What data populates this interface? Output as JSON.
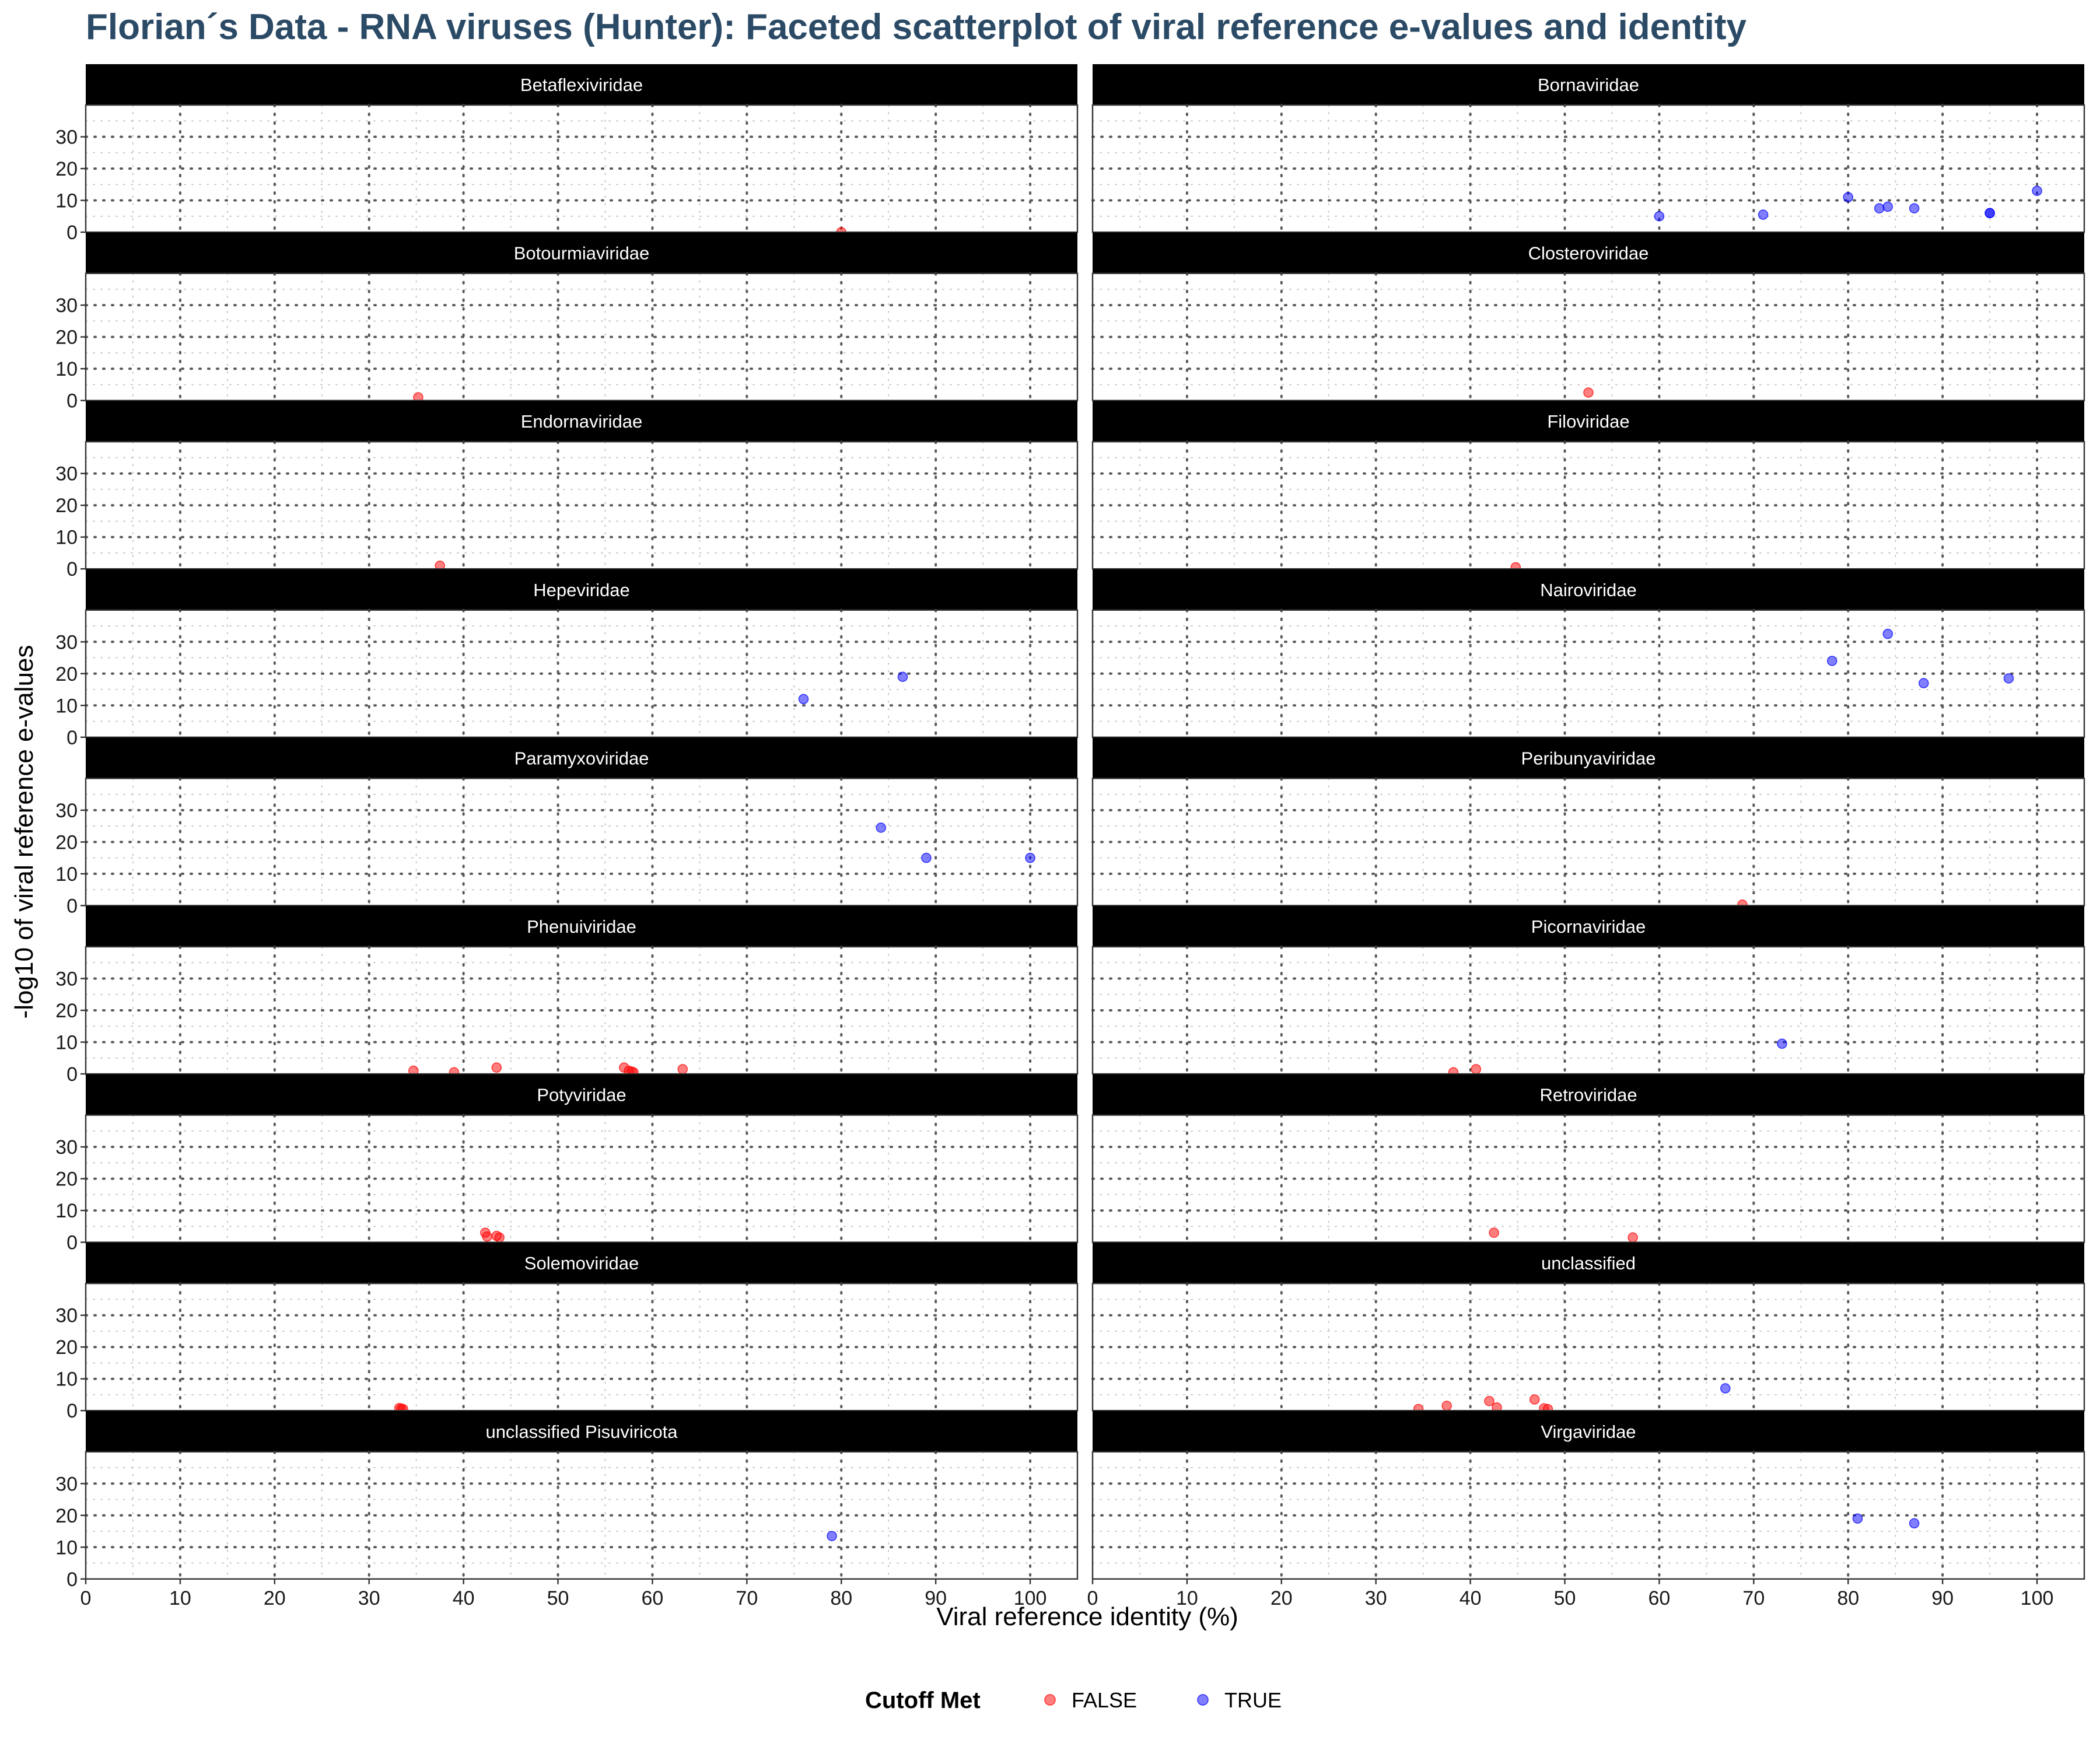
{
  "chart_data": {
    "type": "scatter",
    "title": "Florian´s Data - RNA viruses (Hunter): Faceted scatterplot of viral reference e-values and identity",
    "xlabel": "Viral reference identity (%)",
    "ylabel": "-log10 of viral reference e-values",
    "xlim": [
      0,
      105
    ],
    "ylim": [
      0,
      40
    ],
    "x_ticks": [
      "0",
      "10",
      "20",
      "30",
      "40",
      "50",
      "60",
      "70",
      "80",
      "90",
      "100"
    ],
    "y_ticks": [
      "0",
      "10",
      "20",
      "30"
    ],
    "grid": true,
    "legend": {
      "title": "Cutoff Met",
      "position": "bottom",
      "entries": [
        {
          "label": "FALSE",
          "color": "#ff0000"
        },
        {
          "label": "TRUE",
          "color": "#0000ff"
        }
      ]
    },
    "facets": [
      {
        "name": "Betaflexiviridae",
        "points": [
          {
            "x": 80,
            "y": 0,
            "cutoff": false
          }
        ]
      },
      {
        "name": "Bornaviridae",
        "points": [
          {
            "x": 60,
            "y": 5,
            "cutoff": true
          },
          {
            "x": 71,
            "y": 5.5,
            "cutoff": true
          },
          {
            "x": 80,
            "y": 11,
            "cutoff": true
          },
          {
            "x": 83.3,
            "y": 7.5,
            "cutoff": true
          },
          {
            "x": 84.2,
            "y": 8,
            "cutoff": true
          },
          {
            "x": 87,
            "y": 7.5,
            "cutoff": true
          },
          {
            "x": 95,
            "y": 6,
            "cutoff": true
          },
          {
            "x": 95,
            "y": 6,
            "cutoff": true
          },
          {
            "x": 100,
            "y": 13,
            "cutoff": true
          }
        ]
      },
      {
        "name": "Botourmiaviridae",
        "points": [
          {
            "x": 35.2,
            "y": 1,
            "cutoff": false
          }
        ]
      },
      {
        "name": "Closteroviridae",
        "points": [
          {
            "x": 52.5,
            "y": 2.5,
            "cutoff": false
          }
        ]
      },
      {
        "name": "Endornaviridae",
        "points": [
          {
            "x": 37.5,
            "y": 1,
            "cutoff": false
          }
        ]
      },
      {
        "name": "Filoviridae",
        "points": [
          {
            "x": 44.8,
            "y": 0.5,
            "cutoff": false
          }
        ]
      },
      {
        "name": "Hepeviridae",
        "points": [
          {
            "x": 76,
            "y": 12,
            "cutoff": true
          },
          {
            "x": 86.5,
            "y": 19,
            "cutoff": true
          }
        ]
      },
      {
        "name": "Nairoviridae",
        "points": [
          {
            "x": 78.3,
            "y": 24,
            "cutoff": true
          },
          {
            "x": 84.2,
            "y": 32.5,
            "cutoff": true
          },
          {
            "x": 88,
            "y": 17,
            "cutoff": true
          },
          {
            "x": 97,
            "y": 18.5,
            "cutoff": true
          }
        ]
      },
      {
        "name": "Paramyxoviridae",
        "points": [
          {
            "x": 84.2,
            "y": 24.5,
            "cutoff": true
          },
          {
            "x": 89,
            "y": 15,
            "cutoff": true
          },
          {
            "x": 100,
            "y": 15,
            "cutoff": true
          }
        ]
      },
      {
        "name": "Peribunyaviridae",
        "points": [
          {
            "x": 68.8,
            "y": 0.3,
            "cutoff": false
          }
        ]
      },
      {
        "name": "Phenuiviridae",
        "points": [
          {
            "x": 34.7,
            "y": 1,
            "cutoff": false
          },
          {
            "x": 39,
            "y": 0.5,
            "cutoff": false
          },
          {
            "x": 43.5,
            "y": 2,
            "cutoff": false
          },
          {
            "x": 57,
            "y": 2,
            "cutoff": false
          },
          {
            "x": 57.5,
            "y": 1,
            "cutoff": false
          },
          {
            "x": 57.8,
            "y": 0.7,
            "cutoff": false
          },
          {
            "x": 58,
            "y": 0.5,
            "cutoff": false
          },
          {
            "x": 63.2,
            "y": 1.5,
            "cutoff": false
          }
        ]
      },
      {
        "name": "Picornaviridae",
        "points": [
          {
            "x": 38.2,
            "y": 0.5,
            "cutoff": false
          },
          {
            "x": 40.6,
            "y": 1.5,
            "cutoff": false
          },
          {
            "x": 73,
            "y": 9.5,
            "cutoff": true
          }
        ]
      },
      {
        "name": "Potyviridae",
        "points": [
          {
            "x": 42.3,
            "y": 3,
            "cutoff": false
          },
          {
            "x": 42.5,
            "y": 1.8,
            "cutoff": false
          },
          {
            "x": 43.5,
            "y": 2,
            "cutoff": false
          },
          {
            "x": 43.8,
            "y": 1.5,
            "cutoff": false
          }
        ]
      },
      {
        "name": "Retroviridae",
        "points": [
          {
            "x": 42.5,
            "y": 3,
            "cutoff": false
          },
          {
            "x": 57.2,
            "y": 1.5,
            "cutoff": false
          }
        ]
      },
      {
        "name": "Solemoviridae",
        "points": [
          {
            "x": 33.2,
            "y": 0.8,
            "cutoff": false
          },
          {
            "x": 33.4,
            "y": 0.6,
            "cutoff": false
          },
          {
            "x": 33.6,
            "y": 0.5,
            "cutoff": false
          }
        ]
      },
      {
        "name": "unclassified",
        "points": [
          {
            "x": 34.5,
            "y": 0.5,
            "cutoff": false
          },
          {
            "x": 37.5,
            "y": 1.5,
            "cutoff": false
          },
          {
            "x": 42,
            "y": 3,
            "cutoff": false
          },
          {
            "x": 42.8,
            "y": 1,
            "cutoff": false
          },
          {
            "x": 46.8,
            "y": 3.5,
            "cutoff": false
          },
          {
            "x": 47.8,
            "y": 0.7,
            "cutoff": false
          },
          {
            "x": 48.2,
            "y": 0.5,
            "cutoff": false
          },
          {
            "x": 67,
            "y": 7,
            "cutoff": true
          }
        ]
      },
      {
        "name": "unclassified Pisuviricota",
        "points": [
          {
            "x": 79,
            "y": 13.5,
            "cutoff": true
          }
        ]
      },
      {
        "name": "Virgaviridae",
        "points": [
          {
            "x": 81,
            "y": 19,
            "cutoff": true
          },
          {
            "x": 87,
            "y": 17.5,
            "cutoff": true
          }
        ]
      }
    ]
  }
}
